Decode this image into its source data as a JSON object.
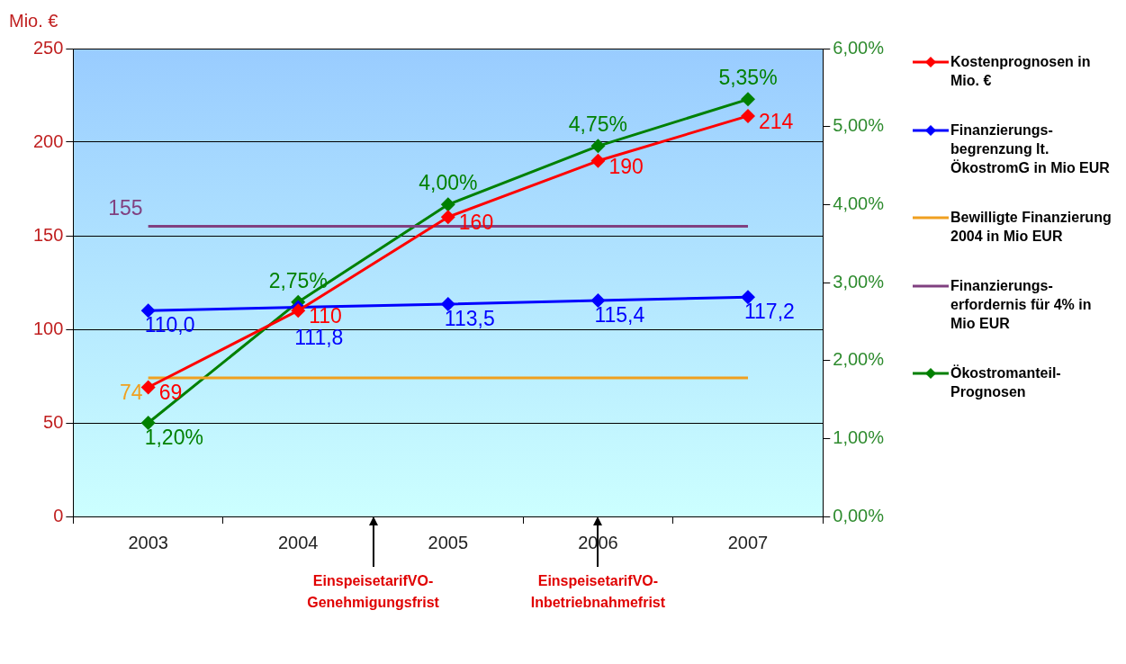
{
  "chart_data": {
    "type": "line",
    "ylabel": "Mio. €",
    "categories": [
      "2003",
      "2004",
      "2005",
      "2006",
      "2007"
    ],
    "series": [
      {
        "name": "Kostenprognosen in Mio. €",
        "color": "#ff0000",
        "values": [
          69,
          110,
          160,
          190,
          214
        ],
        "value_labels": [
          "69",
          "110",
          "160",
          "190",
          "214"
        ]
      },
      {
        "name": "Finanzierungs-begrenzung lt. ÖkostromG in Mio EUR",
        "color": "#0000ff",
        "values": [
          110.0,
          111.8,
          113.5,
          115.4,
          117.2
        ],
        "value_labels": [
          "110,0",
          "111,8",
          "113,5",
          "115,4",
          "117,2"
        ]
      },
      {
        "name": "Bewilligte Finanzierung 2004 in Mio EUR",
        "color": "#f0a020",
        "marker": "none",
        "values": [
          74,
          74,
          74,
          74,
          74
        ],
        "value_labels": [
          "74",
          null,
          null,
          null,
          null
        ]
      },
      {
        "name": "Finanzierungs-erfordernis für 4% in Mio EUR",
        "color": "#804080",
        "marker": "none",
        "values": [
          155,
          155,
          155,
          155,
          155
        ],
        "value_labels": [
          "155",
          null,
          null,
          null,
          null
        ]
      },
      {
        "name": "Ökostromanteil-Prognosen",
        "color": "#008000",
        "axis": "y2",
        "values": [
          1.2,
          2.75,
          4.0,
          4.75,
          5.35
        ],
        "value_labels": [
          "1,20%",
          "2,75%",
          "4,00%",
          "4,75%",
          "5,35%"
        ]
      }
    ],
    "ylim": [
      0,
      250
    ],
    "yticks": [
      0,
      50,
      100,
      150,
      200,
      250
    ],
    "y2lim": [
      0,
      6
    ],
    "y2ticks": [
      {
        "value": 0,
        "label": "0,00%"
      },
      {
        "value": 1,
        "label": "1,00%"
      },
      {
        "value": 2,
        "label": "2,00%"
      },
      {
        "value": 3,
        "label": "3,00%"
      },
      {
        "value": 4,
        "label": "4,00%"
      },
      {
        "value": 5,
        "label": "5,00%"
      },
      {
        "value": 6,
        "label": "6,00%"
      }
    ],
    "annotations": [
      "EinspeisetarifVO-Genehmigungsfrist",
      "EinspeisetarifVO-Inbetriebnahmefrist"
    ],
    "grid": "y",
    "legend": "right",
    "marker": "diamond",
    "line_style": "solid"
  }
}
